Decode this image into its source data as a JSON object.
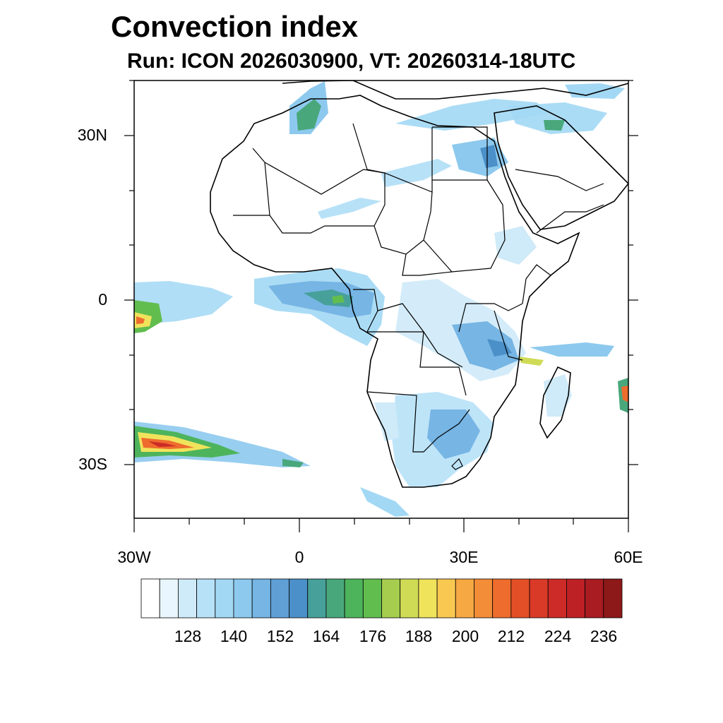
{
  "title": "Convection index",
  "subtitle": "Run: ICON 2026030900,  VT: 20260314-18UTC",
  "map": {
    "lat_labels": [
      "30N",
      "0",
      "30S"
    ],
    "lon_labels": [
      "30W",
      "0",
      "30E",
      "60E"
    ]
  },
  "colorbar": {
    "labels": [
      "128",
      "140",
      "152",
      "164",
      "176",
      "188",
      "200",
      "212",
      "224",
      "236"
    ],
    "colors": [
      "#ffffff",
      "#e9f6fd",
      "#cfeaf8",
      "#b7e1f7",
      "#a2d8f4",
      "#8dc9ee",
      "#76b5e4",
      "#5f9fd6",
      "#4b90c8",
      "#47a09a",
      "#49a77c",
      "#4db45c",
      "#62bd4f",
      "#a6cd4e",
      "#cfdb55",
      "#f0e35c",
      "#f8c851",
      "#f6a843",
      "#f38d37",
      "#ee6c2d",
      "#e35027",
      "#d93a27",
      "#cc2b27",
      "#bd2126",
      "#a81c22",
      "#8d1919"
    ]
  }
}
